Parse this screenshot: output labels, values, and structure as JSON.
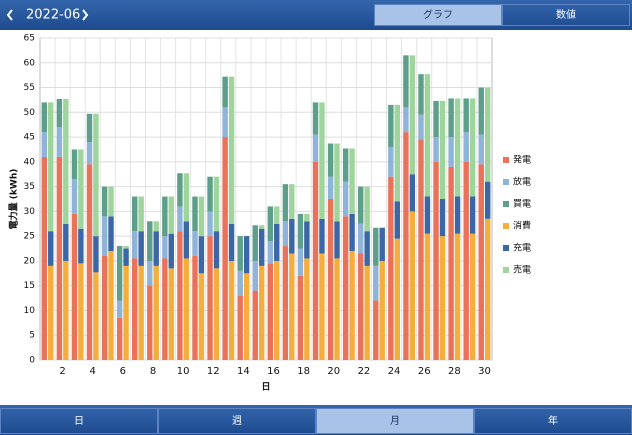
{
  "ui": {
    "month": "2022-06",
    "top_tabs": [
      "グラフ",
      "数値"
    ],
    "bottom_tabs": [
      "日",
      "週",
      "月",
      "年"
    ]
  },
  "chart_data": {
    "type": "bar",
    "stacked": true,
    "xlabel": "日",
    "ylabel": "電力量 (kWh)",
    "categories": [
      null,
      "2",
      null,
      "4",
      null,
      "6",
      null,
      "8",
      null,
      "10",
      null,
      "12",
      null,
      "14",
      null,
      "16",
      null,
      "18",
      null,
      "20",
      null,
      "22",
      null,
      "24",
      null,
      "26",
      null,
      "28",
      null,
      "30"
    ],
    "series": [
      {
        "name": "発電",
        "color": "#e8735a",
        "stack": 0,
        "values": [
          41,
          41,
          29.5,
          39.5,
          21,
          8.5,
          20.5,
          15,
          20.5,
          26,
          21,
          25,
          45,
          13,
          14,
          19.5,
          23,
          17,
          40,
          32.5,
          29,
          21.5,
          12,
          37,
          46,
          44.5,
          40,
          39,
          40,
          39.5
        ]
      },
      {
        "name": "放電",
        "color": "#8fb3d9",
        "stack": 0,
        "values": [
          5,
          6,
          7,
          4.5,
          8,
          3.5,
          5.5,
          5,
          4.5,
          5,
          5,
          5,
          6,
          5,
          6,
          4.5,
          5,
          5.5,
          5.5,
          4.5,
          7,
          6,
          7,
          6,
          5,
          5,
          5,
          6,
          6,
          6
        ]
      },
      {
        "name": "買電",
        "color": "#5d9f8a",
        "stack": 0,
        "values": [
          6,
          5.7,
          6,
          5.7,
          6,
          11,
          7,
          8,
          8,
          6.7,
          7,
          7,
          6.2,
          7,
          7.2,
          7,
          7.5,
          7,
          6.5,
          6.7,
          6.7,
          7.5,
          7.7,
          8.5,
          10.5,
          8.2,
          7.3,
          7.8,
          6.8,
          9.5
        ]
      },
      {
        "name": "消費",
        "color": "#f4ae3d",
        "stack": 1,
        "values": [
          19,
          20,
          19.5,
          17.7,
          22,
          19,
          19,
          19,
          18.5,
          20.5,
          17.5,
          18.5,
          20,
          17.5,
          19,
          20,
          21.5,
          20.5,
          21.5,
          20.5,
          22,
          19,
          20,
          24.5,
          30,
          25.5,
          25,
          25.5,
          25.5,
          28.5
        ]
      },
      {
        "name": "充電",
        "color": "#3c67a6",
        "stack": 1,
        "values": [
          7,
          7.5,
          7,
          7.3,
          7,
          3.5,
          7,
          7,
          7,
          7.5,
          7.5,
          7.5,
          7.5,
          7.5,
          7.5,
          7.5,
          7,
          7.5,
          7,
          7.5,
          7.5,
          7,
          6.7,
          7.5,
          7.5,
          7.5,
          7.5,
          7.5,
          7.5,
          7.5
        ]
      },
      {
        "name": "売電",
        "color": "#9fd49c",
        "stack": 1,
        "values": [
          26,
          25.2,
          16,
          24.7,
          6,
          0.5,
          7,
          2,
          7.5,
          9.7,
          8,
          11,
          29.7,
          0,
          0.7,
          3.5,
          7,
          1.5,
          23.5,
          15.7,
          13.2,
          9,
          0,
          19.5,
          24,
          24.7,
          19.8,
          19.8,
          19.8,
          19
        ]
      }
    ],
    "ylim": [
      0,
      65
    ],
    "yticks": [
      0,
      5,
      10,
      15,
      20,
      25,
      30,
      35,
      40,
      45,
      50,
      55,
      60,
      65
    ],
    "grid": true,
    "legend": "right"
  }
}
